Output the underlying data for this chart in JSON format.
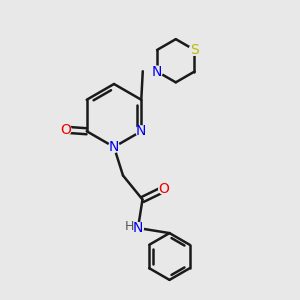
{
  "bg_color": "#e8e8e8",
  "atom_colors": {
    "C": "#000000",
    "N": "#0000ee",
    "O": "#ee0000",
    "S": "#bbbb00",
    "H": "#555555"
  },
  "bond_color": "#1a1a1a",
  "bond_width": 1.8
}
